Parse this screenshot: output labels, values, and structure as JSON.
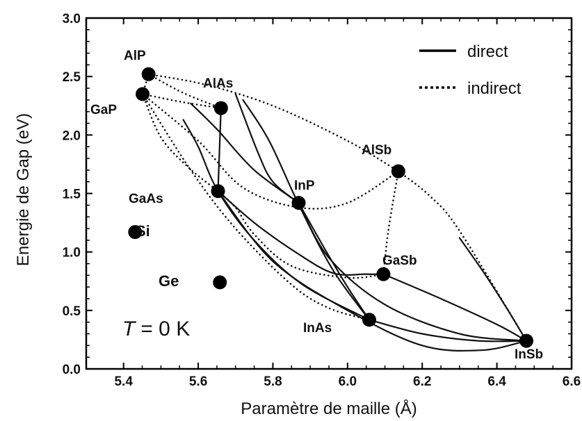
{
  "chart_data": {
    "type": "scatter",
    "xlabel": "Paramètre de maille (Å)",
    "ylabel": "Energie de Gap (eV)",
    "xlim": [
      5.3,
      6.6
    ],
    "ylim": [
      0.0,
      3.0
    ],
    "xticks": [
      "5.4",
      "5.6",
      "5.8",
      "6.0",
      "6.2",
      "6.4",
      "6.6"
    ],
    "yticks": [
      "0.0",
      "0.5",
      "1.0",
      "1.5",
      "2.0",
      "2.5",
      "3.0"
    ],
    "annotation": {
      "T": "T",
      "rest": "= 0 K"
    },
    "legend": {
      "position": "top-right",
      "items": [
        {
          "style": "solid",
          "label": "direct"
        },
        {
          "style": "dotted",
          "label": "indirect"
        }
      ]
    },
    "points": [
      {
        "name": "AlP",
        "x": 5.467,
        "y": 2.52
      },
      {
        "name": "GaP",
        "x": 5.451,
        "y": 2.35
      },
      {
        "name": "AlAs",
        "x": 5.661,
        "y": 2.23
      },
      {
        "name": "GaAs",
        "x": 5.653,
        "y": 1.52
      },
      {
        "name": "InP",
        "x": 5.869,
        "y": 1.42
      },
      {
        "name": "AlSb",
        "x": 6.136,
        "y": 1.69
      },
      {
        "name": "GaSb",
        "x": 6.096,
        "y": 0.81
      },
      {
        "name": "InAs",
        "x": 6.058,
        "y": 0.42
      },
      {
        "name": "InSb",
        "x": 6.479,
        "y": 0.24
      },
      {
        "name": "Si",
        "x": 5.431,
        "y": 1.17
      },
      {
        "name": "Ge",
        "x": 5.658,
        "y": 0.74
      }
    ],
    "curves": [
      {
        "style": "dotted",
        "from": "AlP",
        "to": "AlSb",
        "points": [
          [
            5.467,
            2.52
          ],
          [
            5.62,
            2.43
          ],
          [
            5.8,
            2.25
          ],
          [
            6.0,
            1.95
          ],
          [
            6.136,
            1.69
          ]
        ]
      },
      {
        "style": "dotted",
        "from": "GaP",
        "to": "AlSb",
        "points": [
          [
            5.451,
            2.35
          ],
          [
            5.6,
            1.95
          ],
          [
            5.72,
            1.55
          ],
          [
            5.87,
            1.38
          ],
          [
            6.0,
            1.42
          ],
          [
            6.136,
            1.69
          ]
        ]
      },
      {
        "style": "dotted",
        "from": "AlP",
        "to": "GaP",
        "points": [
          [
            5.467,
            2.52
          ],
          [
            5.451,
            2.35
          ]
        ]
      },
      {
        "style": "dotted",
        "from": "GaP",
        "to": "AlAs",
        "points": [
          [
            5.451,
            2.35
          ],
          [
            5.56,
            2.28
          ],
          [
            5.661,
            2.23
          ]
        ]
      },
      {
        "style": "dotted",
        "from": "AlP",
        "to": "AlAs",
        "points": [
          [
            5.467,
            2.52
          ],
          [
            5.56,
            2.36
          ],
          [
            5.661,
            2.23
          ]
        ]
      },
      {
        "style": "dotted",
        "from": "GaP",
        "to": "GaAs",
        "points": [
          [
            5.451,
            2.35
          ],
          [
            5.5,
            1.98
          ],
          [
            5.575,
            1.72
          ],
          [
            5.653,
            1.52
          ]
        ]
      },
      {
        "style": "dotted",
        "from": "GaAs",
        "to": "GaSb",
        "points": [
          [
            5.653,
            1.52
          ],
          [
            5.7,
            1.38
          ],
          [
            5.75,
            1.15
          ],
          [
            5.85,
            0.88
          ],
          [
            6.0,
            0.78
          ],
          [
            6.096,
            0.81
          ]
        ]
      },
      {
        "style": "dotted",
        "from": "AlSb",
        "to": "InSb",
        "points": [
          [
            6.136,
            1.69
          ],
          [
            6.22,
            1.48
          ],
          [
            6.3,
            1.18
          ],
          [
            6.479,
            0.24
          ]
        ]
      },
      {
        "style": "dotted",
        "from": "AlSb",
        "to": "GaSb",
        "points": [
          [
            6.136,
            1.69
          ],
          [
            6.11,
            1.2
          ],
          [
            6.096,
            0.81
          ]
        ]
      },
      {
        "style": "dotted",
        "from": "GaP",
        "to": "InAs",
        "points": [
          [
            5.451,
            2.35
          ],
          [
            5.58,
            1.7
          ],
          [
            5.7,
            1.2
          ],
          [
            5.85,
            0.72
          ],
          [
            5.95,
            0.52
          ],
          [
            6.058,
            0.42
          ]
        ]
      },
      {
        "style": "solid",
        "from": "AlAs",
        "to": "GaAs",
        "points": [
          [
            5.661,
            2.23
          ],
          [
            5.653,
            1.52
          ]
        ]
      },
      {
        "style": "solid",
        "from": "AlAs",
        "to": "InAs",
        "points": [
          [
            5.72,
            2.3
          ],
          [
            5.79,
            1.95
          ],
          [
            5.87,
            1.4
          ],
          [
            5.96,
            0.85
          ],
          [
            6.058,
            0.42
          ]
        ]
      },
      {
        "style": "solid",
        "from": "AlP",
        "to": "InP",
        "points": [
          [
            5.7,
            2.35
          ],
          [
            5.76,
            1.85
          ],
          [
            5.8,
            1.6
          ],
          [
            5.869,
            1.42
          ]
        ]
      },
      {
        "style": "solid",
        "from": "GaP",
        "to": "InP",
        "points": [
          [
            5.58,
            2.27
          ],
          [
            5.65,
            2.05
          ],
          [
            5.75,
            1.7
          ],
          [
            5.869,
            1.42
          ]
        ]
      },
      {
        "style": "solid",
        "from": "InP",
        "to": "InAs",
        "points": [
          [
            5.869,
            1.42
          ],
          [
            5.94,
            1.02
          ],
          [
            6.0,
            0.7
          ],
          [
            6.058,
            0.42
          ]
        ]
      },
      {
        "style": "solid",
        "from": "GaAs",
        "to": "InAs",
        "points": [
          [
            5.56,
            2.13
          ],
          [
            5.6,
            1.9
          ],
          [
            5.653,
            1.52
          ],
          [
            5.75,
            1.1
          ],
          [
            5.88,
            0.72
          ],
          [
            6.058,
            0.42
          ]
        ]
      },
      {
        "style": "solid",
        "from": "GaAs",
        "to": "GaSb",
        "points": [
          [
            5.653,
            1.52
          ],
          [
            5.75,
            1.25
          ],
          [
            5.86,
            1.0
          ],
          [
            5.96,
            0.82
          ],
          [
            6.05,
            0.81
          ],
          [
            6.096,
            0.81
          ]
        ]
      },
      {
        "style": "solid",
        "from": "GaSb",
        "to": "InSb",
        "points": [
          [
            6.096,
            0.81
          ],
          [
            6.25,
            0.6
          ],
          [
            6.4,
            0.38
          ],
          [
            6.479,
            0.24
          ]
        ]
      },
      {
        "style": "solid",
        "from": "InAs",
        "to": "InSb",
        "points": [
          [
            6.058,
            0.42
          ],
          [
            6.2,
            0.3
          ],
          [
            6.35,
            0.24
          ],
          [
            6.479,
            0.24
          ]
        ]
      },
      {
        "style": "solid",
        "from": "GaAs",
        "to": "InSb",
        "points": [
          [
            5.653,
            1.52
          ],
          [
            5.8,
            0.92
          ],
          [
            6.0,
            0.5
          ],
          [
            6.2,
            0.2
          ],
          [
            6.36,
            0.16
          ],
          [
            6.479,
            0.24
          ]
        ]
      },
      {
        "style": "solid",
        "from": "InP",
        "to": "InSb",
        "points": [
          [
            5.869,
            1.42
          ],
          [
            5.95,
            0.95
          ],
          [
            6.1,
            0.55
          ],
          [
            6.3,
            0.3
          ],
          [
            6.479,
            0.24
          ]
        ]
      },
      {
        "style": "solid",
        "from": "AlSb",
        "to": "InSb",
        "points": [
          [
            6.3,
            1.12
          ],
          [
            6.37,
            0.8
          ],
          [
            6.43,
            0.5
          ],
          [
            6.479,
            0.24
          ]
        ]
      }
    ]
  }
}
